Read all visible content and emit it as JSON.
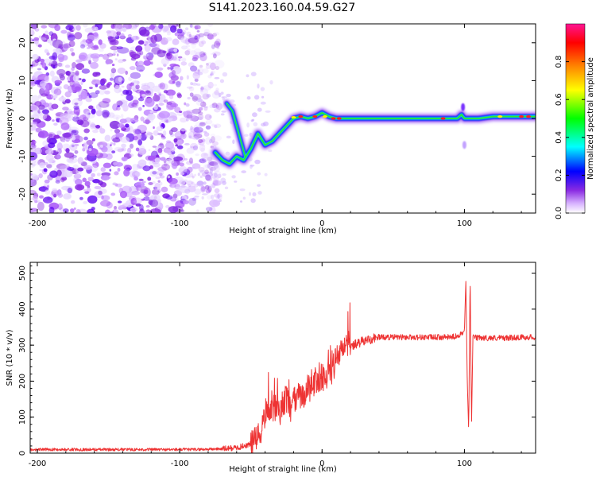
{
  "title": "S141.2023.160.04.59.G27",
  "chart_data": [
    {
      "type": "heatmap",
      "xlabel": "Height of straight line (km)",
      "ylabel": "Frequency (Hz)",
      "xlim": [
        -205,
        150
      ],
      "ylim": [
        -25,
        25
      ],
      "x_ticks": [
        -200,
        -100,
        0,
        100
      ],
      "y_ticks": [
        -20,
        -10,
        0,
        10,
        20
      ],
      "colorbar": {
        "label": "Normalized spectral amplitude",
        "range": [
          0,
          1
        ],
        "ticks": [
          0.0,
          0.2,
          0.4,
          0.6,
          0.8
        ],
        "tick_labels": [
          "0.0",
          "0.2",
          "0.4",
          "0.6",
          "0.8"
        ],
        "colormap": [
          "#ffffff",
          "#d8b4ff",
          "#8a2be2",
          "#0000ff",
          "#00ffff",
          "#00ff00",
          "#ffff00",
          "#ff8000",
          "#ff0000",
          "#ff1493"
        ]
      },
      "ridge": {
        "x": [
          -75,
          -70,
          -65,
          -60,
          -55,
          -50,
          -45,
          -40,
          -35,
          -30,
          -25,
          -20,
          -15,
          -10,
          -5,
          0,
          5,
          10,
          15,
          20,
          40,
          60,
          80,
          90,
          95,
          98,
          100,
          105,
          110,
          120,
          130,
          140,
          150
        ],
        "y": [
          -9,
          -11,
          -12,
          -10,
          -11,
          -8,
          -4,
          -7,
          -6,
          -4,
          -2,
          0,
          0.5,
          0,
          0.5,
          1.5,
          0.5,
          0,
          0,
          0,
          0,
          0,
          0,
          0,
          0,
          1,
          0,
          0,
          0,
          0.5,
          0.5,
          0.5,
          0.5
        ]
      },
      "ridge2": {
        "x": [
          -67,
          -63,
          -60,
          -57,
          -54
        ],
        "y": [
          4,
          2,
          -2,
          -6,
          -10
        ]
      },
      "noise_region": [
        -205,
        -80
      ]
    },
    {
      "type": "line",
      "xlabel": "Height of straight line (km)",
      "ylabel": "SNR (10 * v/v)",
      "xlim": [
        -205,
        150
      ],
      "ylim": [
        0,
        530
      ],
      "x_ticks": [
        -200,
        -100,
        0,
        100
      ],
      "y_ticks": [
        0,
        100,
        200,
        300,
        400,
        500
      ],
      "line_color": "#ee3333",
      "series": [
        {
          "x": [
            -205,
            -180,
            -150,
            -120,
            -90,
            -70,
            -60,
            -50,
            -45,
            -42,
            -40,
            -38,
            -35,
            -32,
            -30,
            -27,
            -25,
            -22,
            -20,
            -17,
            -15,
            -12,
            -10,
            -7,
            -5,
            -2,
            0,
            3,
            5,
            7,
            10,
            12,
            14,
            16,
            20,
            25,
            30,
            35,
            40,
            45,
            50,
            60,
            70,
            80,
            90,
            95,
            100,
            101,
            102,
            103,
            104,
            105,
            106,
            108,
            110,
            120,
            130,
            140,
            150
          ],
          "y": [
            10,
            10,
            10,
            10,
            10,
            12,
            15,
            25,
            40,
            70,
            110,
            130,
            125,
            120,
            110,
            145,
            150,
            115,
            140,
            160,
            150,
            170,
            180,
            185,
            200,
            205,
            210,
            220,
            215,
            230,
            260,
            270,
            285,
            290,
            295,
            305,
            312,
            318,
            322,
            322,
            322,
            322,
            322,
            322,
            322,
            325,
            340,
            480,
            200,
            60,
            500,
            80,
            330,
            320,
            320,
            320,
            320,
            322,
            322
          ]
        }
      ]
    }
  ]
}
